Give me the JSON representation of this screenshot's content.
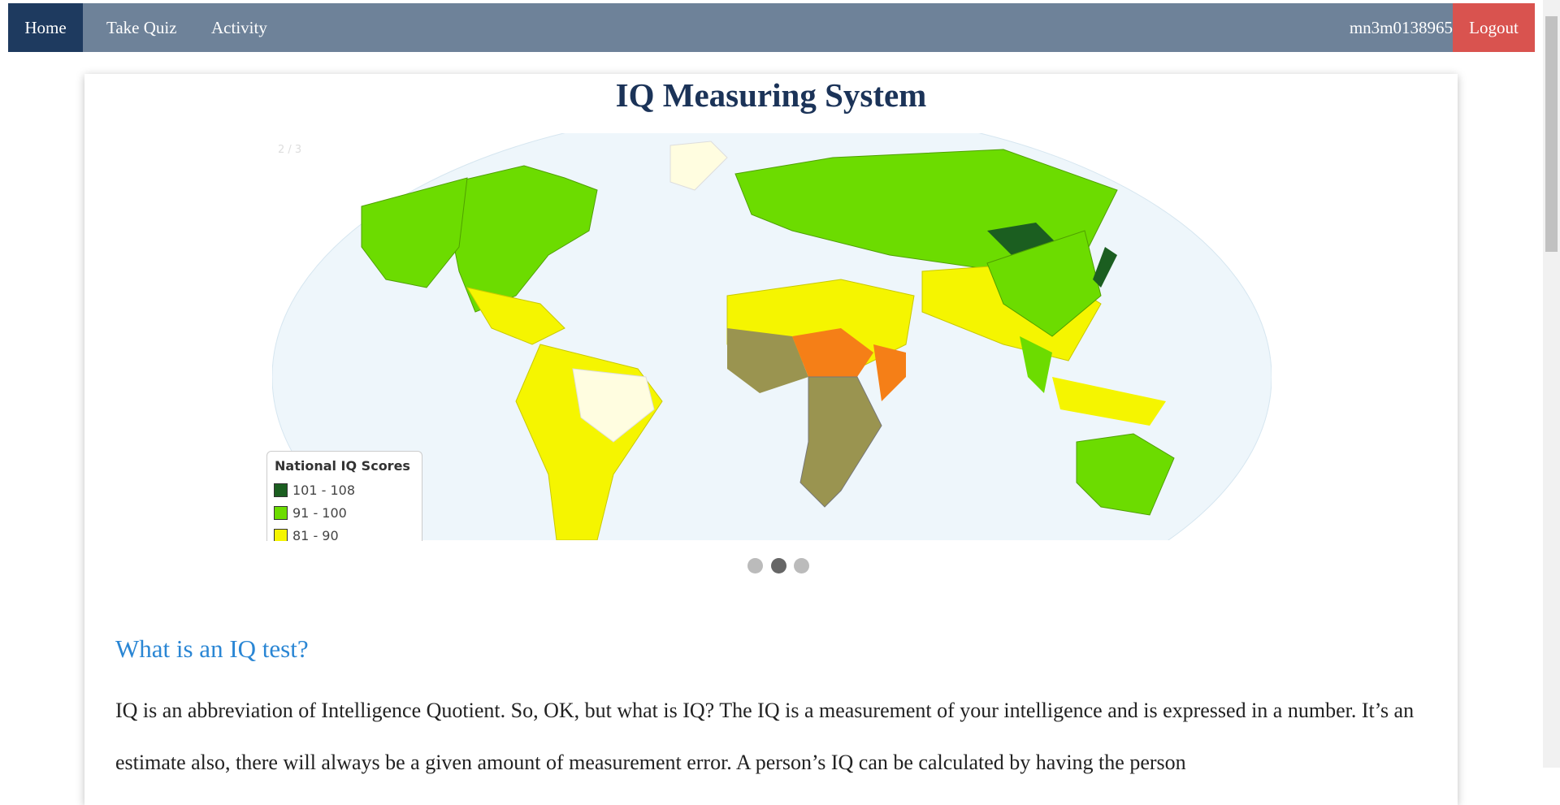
{
  "nav": {
    "items": [
      "Home",
      "Take Quiz",
      "Activity"
    ],
    "user": "mn3m0138965",
    "logout": "Logout"
  },
  "header": {
    "title": "IQ Measuring System"
  },
  "slideshow": {
    "counter": "2 / 3",
    "legend": {
      "title": "National IQ Scores",
      "items": [
        {
          "label": "101 - 108",
          "color": "#1b5e20"
        },
        {
          "label": "91 - 100",
          "color": "#6cdc00"
        },
        {
          "label": "81 - 90",
          "color": "#f5f500"
        }
      ]
    }
  },
  "section": {
    "heading": "What is an IQ test?",
    "paragraph": "IQ is an abbreviation of Intelligence Quotient. So, OK, but what is IQ? The IQ is a measurement of your intelligence and is expressed in a number. It’s an estimate also, there will always be a given amount of measurement error. A person’s IQ can be calculated by having the person"
  }
}
